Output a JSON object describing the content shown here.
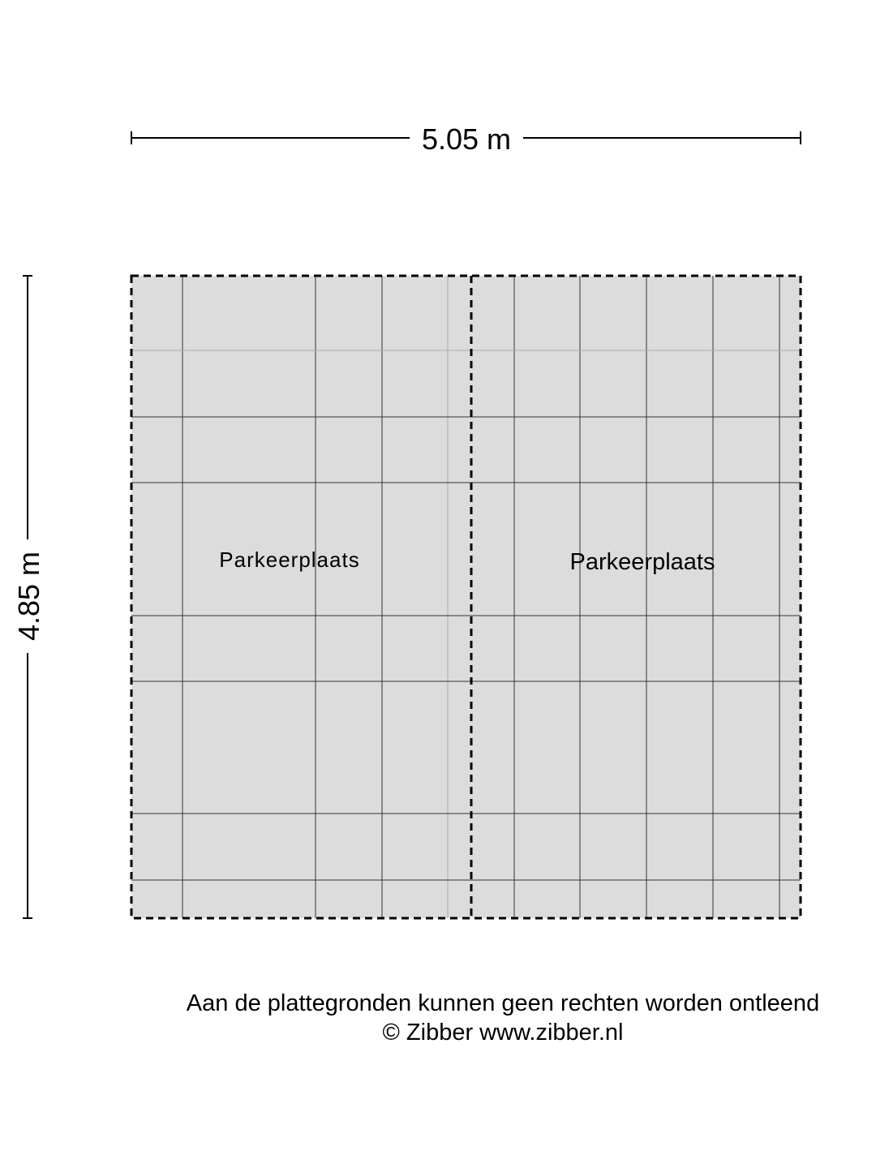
{
  "dimensions": {
    "width": "5.05 m",
    "height": "4.85 m"
  },
  "rooms": [
    {
      "label": "Parkeerplaats"
    },
    {
      "label": "Parkeerplaats"
    }
  ],
  "footer": {
    "disclaimer": "Aan de plattegronden kunnen geen rechten worden ontleend",
    "copyright": "© Zibber www.zibber.nl"
  }
}
